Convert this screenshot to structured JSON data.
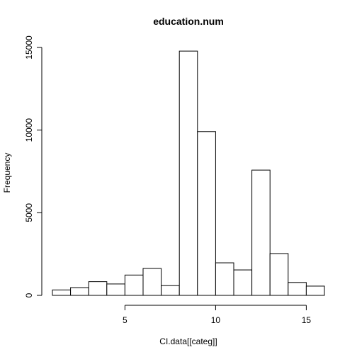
{
  "chart_data": {
    "type": "bar",
    "title": "education.num",
    "xlabel": "CI.data[[categ]]",
    "ylabel": "Frequency",
    "bins": [
      [
        1,
        2
      ],
      [
        2,
        3
      ],
      [
        3,
        4
      ],
      [
        4,
        5
      ],
      [
        5,
        6
      ],
      [
        6,
        7
      ],
      [
        7,
        8
      ],
      [
        8,
        9
      ],
      [
        9,
        10
      ],
      [
        10,
        11
      ],
      [
        11,
        12
      ],
      [
        12,
        13
      ],
      [
        13,
        14
      ],
      [
        14,
        15
      ],
      [
        15,
        16
      ]
    ],
    "values": [
      330,
      470,
      830,
      690,
      1230,
      1630,
      590,
      14780,
      9910,
      1970,
      1540,
      7580,
      2530,
      780,
      560
    ],
    "xticks": [
      5,
      10,
      15
    ],
    "xtick_labels": [
      "5",
      "10",
      "15"
    ],
    "yticks": [
      0,
      5000,
      10000,
      15000
    ],
    "ytick_labels": [
      "0",
      "5000",
      "10000",
      "15000"
    ],
    "xlim": [
      1,
      16
    ],
    "ylim": [
      0,
      15000
    ],
    "bar_fill": "#ffffff",
    "bar_stroke": "#000000",
    "grid": false
  }
}
